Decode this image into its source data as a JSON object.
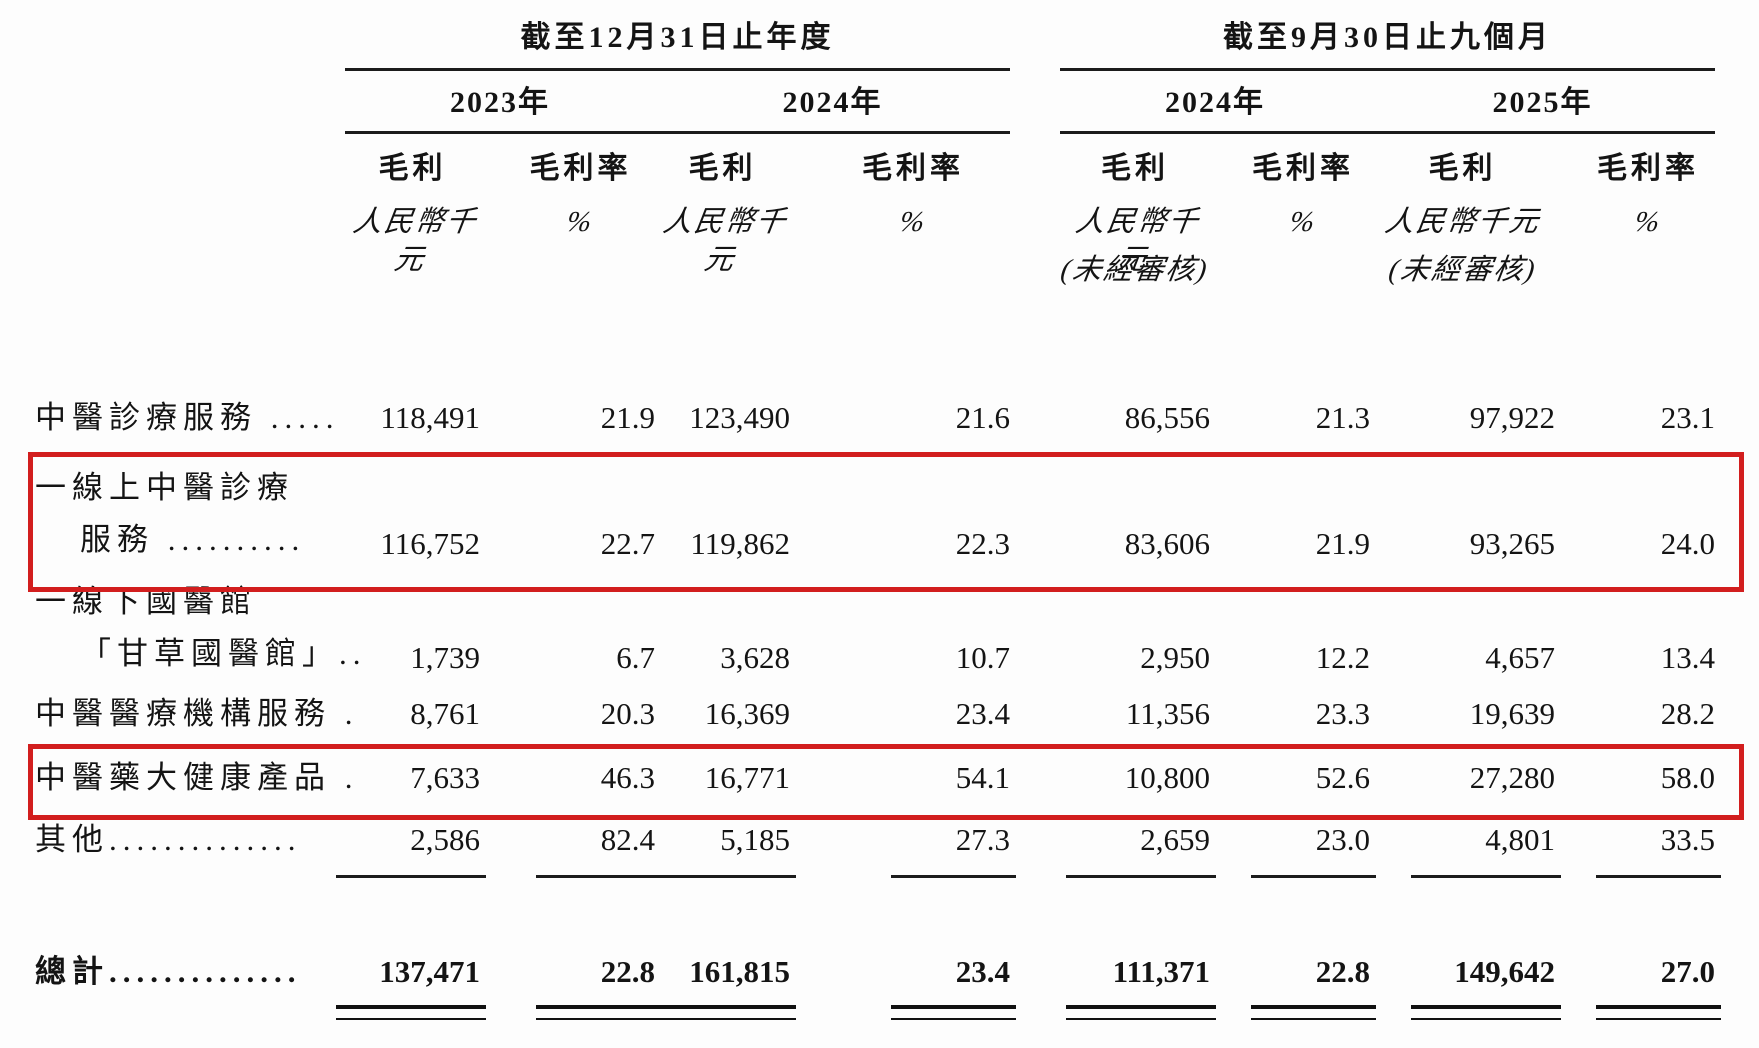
{
  "page": {
    "background": "#fdfdfd",
    "text_color": "#141414",
    "highlight_color": "#d21e1e"
  },
  "table": {
    "groups": [
      {
        "title": "截至12月31日止年度",
        "years": [
          "2023年",
          "2024年"
        ]
      },
      {
        "title": "截至9月30日止九個月",
        "years": [
          "2024年",
          "2025年"
        ]
      }
    ],
    "column_headers": {
      "gross_profit": "毛利",
      "gross_margin": "毛利率",
      "unit_thousand_rmb": "人民幣千元",
      "unit_percent": "%",
      "unaudited_note": "(未經審核)"
    },
    "rows": [
      {
        "label_lines": [
          "中醫診療服務 ....."
        ],
        "values": [
          "118,491",
          "21.9",
          "123,490",
          "21.6",
          "86,556",
          "21.3",
          "97,922",
          "23.1"
        ],
        "highlighted": false
      },
      {
        "label_lines": [
          "一線上中醫診療",
          "服務 .........."
        ],
        "values": [
          "116,752",
          "22.7",
          "119,862",
          "22.3",
          "83,606",
          "21.9",
          "93,265",
          "24.0"
        ],
        "highlighted": true
      },
      {
        "label_lines": [
          "一線下國醫館",
          "「甘草國醫館」.."
        ],
        "values": [
          "1,739",
          "6.7",
          "3,628",
          "10.7",
          "2,950",
          "12.2",
          "4,657",
          "13.4"
        ],
        "highlighted": false
      },
      {
        "label_lines": [
          "中醫醫療機構服務 ."
        ],
        "values": [
          "8,761",
          "20.3",
          "16,369",
          "23.4",
          "11,356",
          "23.3",
          "19,639",
          "28.2"
        ],
        "highlighted": false
      },
      {
        "label_lines": [
          "中醫藥大健康產品 ."
        ],
        "values": [
          "7,633",
          "46.3",
          "16,771",
          "54.1",
          "10,800",
          "52.6",
          "27,280",
          "58.0"
        ],
        "highlighted": true
      },
      {
        "label_lines": [
          "其他.............."
        ],
        "values": [
          "2,586",
          "82.4",
          "5,185",
          "27.3",
          "2,659",
          "23.0",
          "4,801",
          "33.5"
        ],
        "highlighted": false
      }
    ],
    "total_row": {
      "label": "總計..............",
      "values": [
        "137,471",
        "22.8",
        "161,815",
        "23.4",
        "111,371",
        "22.8",
        "149,642",
        "27.0"
      ]
    }
  }
}
